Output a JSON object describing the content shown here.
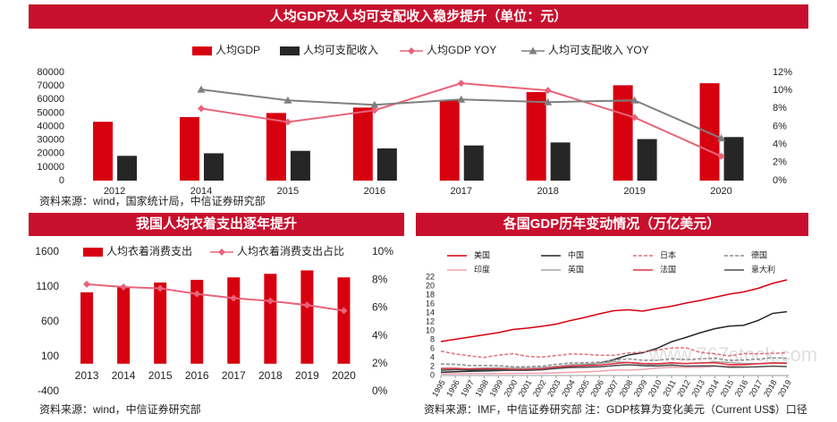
{
  "chart_data": [
    {
      "type": "bar",
      "title": "人均GDP及人均可支配收入稳步提升（单位：元）",
      "categories": [
        "2012",
        "2014",
        "2015",
        "2016",
        "2017",
        "2018",
        "2019",
        "2020"
      ],
      "series": [
        {
          "name": "人均GDP",
          "color": "#d7000f",
          "values": [
            43500,
            47000,
            50000,
            54000,
            59500,
            65500,
            70500,
            72000
          ]
        },
        {
          "name": "人均可支配收入",
          "color": "#262626",
          "values": [
            18300,
            20200,
            22000,
            23800,
            26000,
            28200,
            30700,
            32200
          ]
        },
        {
          "name": "人均GDP YOY",
          "color": "#e8637a",
          "type": "line",
          "marker": "diamond",
          "axis": "y2",
          "values": [
            null,
            8.0,
            6.5,
            7.8,
            10.8,
            10.0,
            7.0,
            2.7
          ]
        },
        {
          "name": "人均可支配收入 YOY",
          "color": "#7f7f7f",
          "type": "line",
          "marker": "triangle",
          "axis": "y2",
          "values": [
            null,
            10.1,
            8.9,
            8.4,
            9.0,
            8.7,
            8.9,
            4.7
          ]
        }
      ],
      "ylim": [
        0,
        80000
      ],
      "yticks": [
        0,
        10000,
        20000,
        30000,
        40000,
        50000,
        60000,
        70000,
        80000
      ],
      "y2lim": [
        0,
        12
      ],
      "y2ticks": [
        {
          "value": 0,
          "label": "0%"
        },
        {
          "value": 2,
          "label": "2%"
        },
        {
          "value": 4,
          "label": "4%"
        },
        {
          "value": 6,
          "label": "6%"
        },
        {
          "value": 8,
          "label": "8%"
        },
        {
          "value": 10,
          "label": "10%"
        },
        {
          "value": 12,
          "label": "12%"
        }
      ],
      "source": "资料来源：wind，国家统计局，中信证券研究部"
    },
    {
      "type": "bar",
      "title": "我国人均衣着支出逐年提升",
      "categories": [
        "2013",
        "2014",
        "2015",
        "2016",
        "2017",
        "2018",
        "2019",
        "2020"
      ],
      "series": [
        {
          "name": "人均衣着消费支出",
          "color": "#d7000f",
          "values": [
            1023,
            1100,
            1164,
            1203,
            1238,
            1289,
            1338,
            1238
          ]
        },
        {
          "name": "人均衣着消费支出占比",
          "color": "#e8637a",
          "type": "line",
          "marker": "diamond",
          "axis": "y2",
          "values": [
            7.7,
            7.5,
            7.4,
            7.0,
            6.7,
            6.5,
            6.2,
            5.8
          ]
        }
      ],
      "ylim": [
        -400,
        1600
      ],
      "yticks": [
        -400,
        100,
        600,
        1100,
        1600
      ],
      "y2lim": [
        0,
        10
      ],
      "y2ticks": [
        {
          "value": 0,
          "label": "0%"
        },
        {
          "value": 2,
          "label": "2%"
        },
        {
          "value": 4,
          "label": "4%"
        },
        {
          "value": 6,
          "label": "6%"
        },
        {
          "value": 8,
          "label": "8%"
        },
        {
          "value": 10,
          "label": "10%"
        }
      ],
      "source": "资料来源：wind，中信证券研究部"
    },
    {
      "type": "line",
      "title": "各国GDP历年变动情况（万亿美元）",
      "x": [
        1995,
        1996,
        1997,
        1998,
        1999,
        2000,
        2001,
        2002,
        2003,
        2004,
        2005,
        2006,
        2007,
        2008,
        2009,
        2010,
        2011,
        2012,
        2013,
        2014,
        2015,
        2016,
        2017,
        2018,
        2019
      ],
      "series": [
        {
          "name": "美国",
          "color": "#d7000f",
          "values": [
            7.6,
            8.1,
            8.6,
            9.1,
            9.6,
            10.3,
            10.6,
            11.0,
            11.5,
            12.3,
            13.0,
            13.8,
            14.5,
            14.7,
            14.4,
            15.0,
            15.5,
            16.2,
            16.8,
            17.5,
            18.2,
            18.7,
            19.5,
            20.6,
            21.4
          ]
        },
        {
          "name": "中国",
          "color": "#262626",
          "values": [
            0.73,
            0.86,
            0.96,
            1.03,
            1.09,
            1.21,
            1.34,
            1.47,
            1.66,
            1.96,
            2.29,
            2.75,
            3.55,
            4.59,
            5.1,
            6.09,
            7.55,
            8.53,
            9.57,
            10.48,
            11.06,
            11.23,
            12.31,
            13.89,
            14.28
          ]
        },
        {
          "name": "日本",
          "color": "#e0707a",
          "style": "dashed",
          "values": [
            5.45,
            4.83,
            4.41,
            4.03,
            4.56,
            4.89,
            4.3,
            4.12,
            4.45,
            4.82,
            4.76,
            4.53,
            4.52,
            5.04,
            5.23,
            5.7,
            6.16,
            6.2,
            5.16,
            4.85,
            4.39,
            4.92,
            4.87,
            4.95,
            5.08
          ]
        },
        {
          "name": "德国",
          "color": "#8c8c8c",
          "style": "dashed",
          "values": [
            2.59,
            2.5,
            2.22,
            2.24,
            2.2,
            1.95,
            1.95,
            2.08,
            2.5,
            2.81,
            2.85,
            3.0,
            3.42,
            3.73,
            3.41,
            3.4,
            3.74,
            3.53,
            3.73,
            3.88,
            3.36,
            3.47,
            3.66,
            3.95,
            3.86
          ]
        },
        {
          "name": "印度",
          "color": "#f2a0b0",
          "values": [
            0.36,
            0.39,
            0.42,
            0.42,
            0.46,
            0.47,
            0.49,
            0.51,
            0.61,
            0.71,
            0.82,
            0.94,
            1.22,
            1.2,
            1.34,
            1.68,
            1.82,
            1.83,
            1.86,
            2.04,
            2.1,
            2.29,
            2.65,
            2.71,
            2.87
          ]
        },
        {
          "name": "英国",
          "color": "#a6a6a6",
          "values": [
            1.34,
            1.42,
            1.56,
            1.65,
            1.69,
            1.66,
            1.64,
            1.78,
            2.05,
            2.42,
            2.54,
            2.71,
            3.09,
            2.92,
            2.41,
            2.48,
            2.66,
            2.7,
            2.79,
            3.06,
            2.93,
            2.69,
            2.67,
            2.86,
            2.83
          ]
        },
        {
          "name": "法国",
          "color": "#e8303f",
          "values": [
            1.6,
            1.61,
            1.46,
            1.51,
            1.49,
            1.36,
            1.38,
            1.5,
            1.84,
            2.12,
            2.2,
            2.32,
            2.66,
            2.92,
            2.69,
            2.64,
            2.86,
            2.68,
            2.81,
            2.85,
            2.44,
            2.47,
            2.59,
            2.79,
            2.72
          ]
        },
        {
          "name": "意大利",
          "color": "#4d4d4d",
          "values": [
            1.17,
            1.31,
            1.24,
            1.27,
            1.25,
            1.14,
            1.16,
            1.27,
            1.57,
            1.8,
            1.85,
            1.94,
            2.2,
            2.39,
            2.19,
            2.13,
            2.29,
            2.09,
            2.14,
            2.16,
            1.84,
            1.88,
            1.96,
            2.09,
            2.0
          ]
        }
      ],
      "xlim": [
        1995,
        2019
      ],
      "ylim": [
        0,
        22
      ],
      "yticks": [
        0,
        2,
        4,
        6,
        8,
        10,
        12,
        14,
        16,
        18,
        20,
        22
      ],
      "source": "资料来源：IMF，中信证券研究部 注：GDP核算为变化美元（Current US$）口径"
    }
  ],
  "watermark": "www.767stock.com"
}
